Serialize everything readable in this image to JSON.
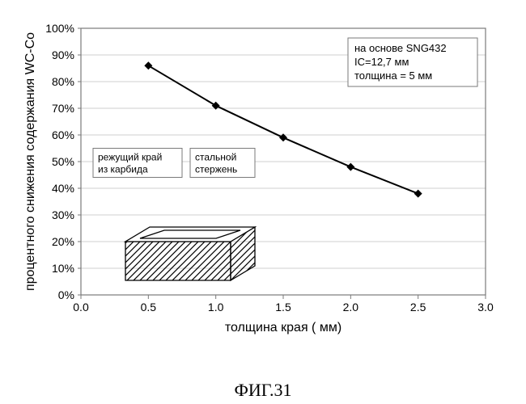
{
  "chart": {
    "type": "line",
    "background_color": "#ffffff",
    "plot_border_color": "#7a7a7a",
    "grid_color": "#cfcfcf",
    "line_color": "#000000",
    "marker_color": "#000000",
    "marker_size": 5,
    "line_width": 2,
    "x": {
      "min": 0.0,
      "max": 3.0,
      "step": 0.5,
      "label": "толщина края ( мм)"
    },
    "y": {
      "min": 0,
      "max": 100,
      "step": 10,
      "label": "процентного снижения содержания WC-Co"
    },
    "tick_fontsize": 14,
    "axis_label_fontsize": 16,
    "points": [
      {
        "x": 0.5,
        "y": 86
      },
      {
        "x": 1.0,
        "y": 71
      },
      {
        "x": 1.5,
        "y": 59
      },
      {
        "x": 2.0,
        "y": 48
      },
      {
        "x": 2.5,
        "y": 38
      }
    ],
    "info_box": {
      "lines": [
        "на основе SNG432",
        "IC=12,7 мм",
        "толщина = 5 мм"
      ],
      "border_color": "#7a7a7a",
      "text_color": "#000000",
      "fontsize": 13
    },
    "labels": {
      "edge": "режущий край из карбида",
      "core": "стальной стержень",
      "box_border": "#7a7a7a",
      "fontsize": 12
    },
    "insert_3d": {
      "hatch_color": "#000000",
      "top_fill": "#ffffff",
      "outline": "#000000"
    }
  },
  "caption": "ФИГ.31"
}
